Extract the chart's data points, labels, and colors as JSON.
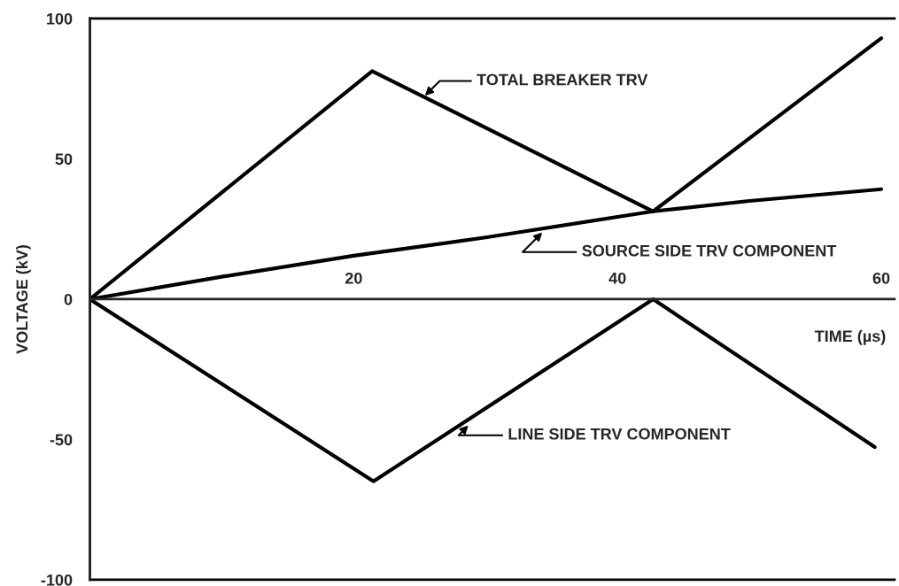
{
  "chart_data": {
    "type": "line",
    "xlabel": "TIME (µs)",
    "ylabel": "VOLTAGE (kV)",
    "xlim": [
      0,
      61
    ],
    "ylim": [
      -100,
      100
    ],
    "xticks": [
      20,
      40,
      60
    ],
    "yticks": [
      -100,
      -50,
      0,
      50,
      100
    ],
    "grid": false,
    "legend": false,
    "marker": "none",
    "line_style": "solid",
    "series": [
      {
        "color": "#000000",
        "x": [
          0,
          21.4,
          42.7,
          60
        ],
        "values": [
          0,
          81.3,
          31.3,
          93
        ]
      },
      {
        "color": "#000000",
        "x": [
          0,
          10,
          20,
          30,
          42.7,
          50,
          60
        ],
        "values": [
          0,
          8,
          15.5,
          22,
          31.3,
          35,
          39.2
        ]
      },
      {
        "color": "#000000",
        "x": [
          0,
          21.5,
          42.7,
          59.5
        ],
        "values": [
          0,
          -64.9,
          0,
          -52.7
        ]
      }
    ],
    "annotations": [
      {
        "text": "TOTAL BREAKER TRV",
        "x": 25.4,
        "y": 72.5
      },
      {
        "text": "SOURCE SIDE TRV COMPONENT",
        "x": 34.3,
        "y": 23.8
      },
      {
        "text": "LINE SIDE TRV COMPONENT",
        "x": 28.7,
        "y": -45
      }
    ]
  }
}
